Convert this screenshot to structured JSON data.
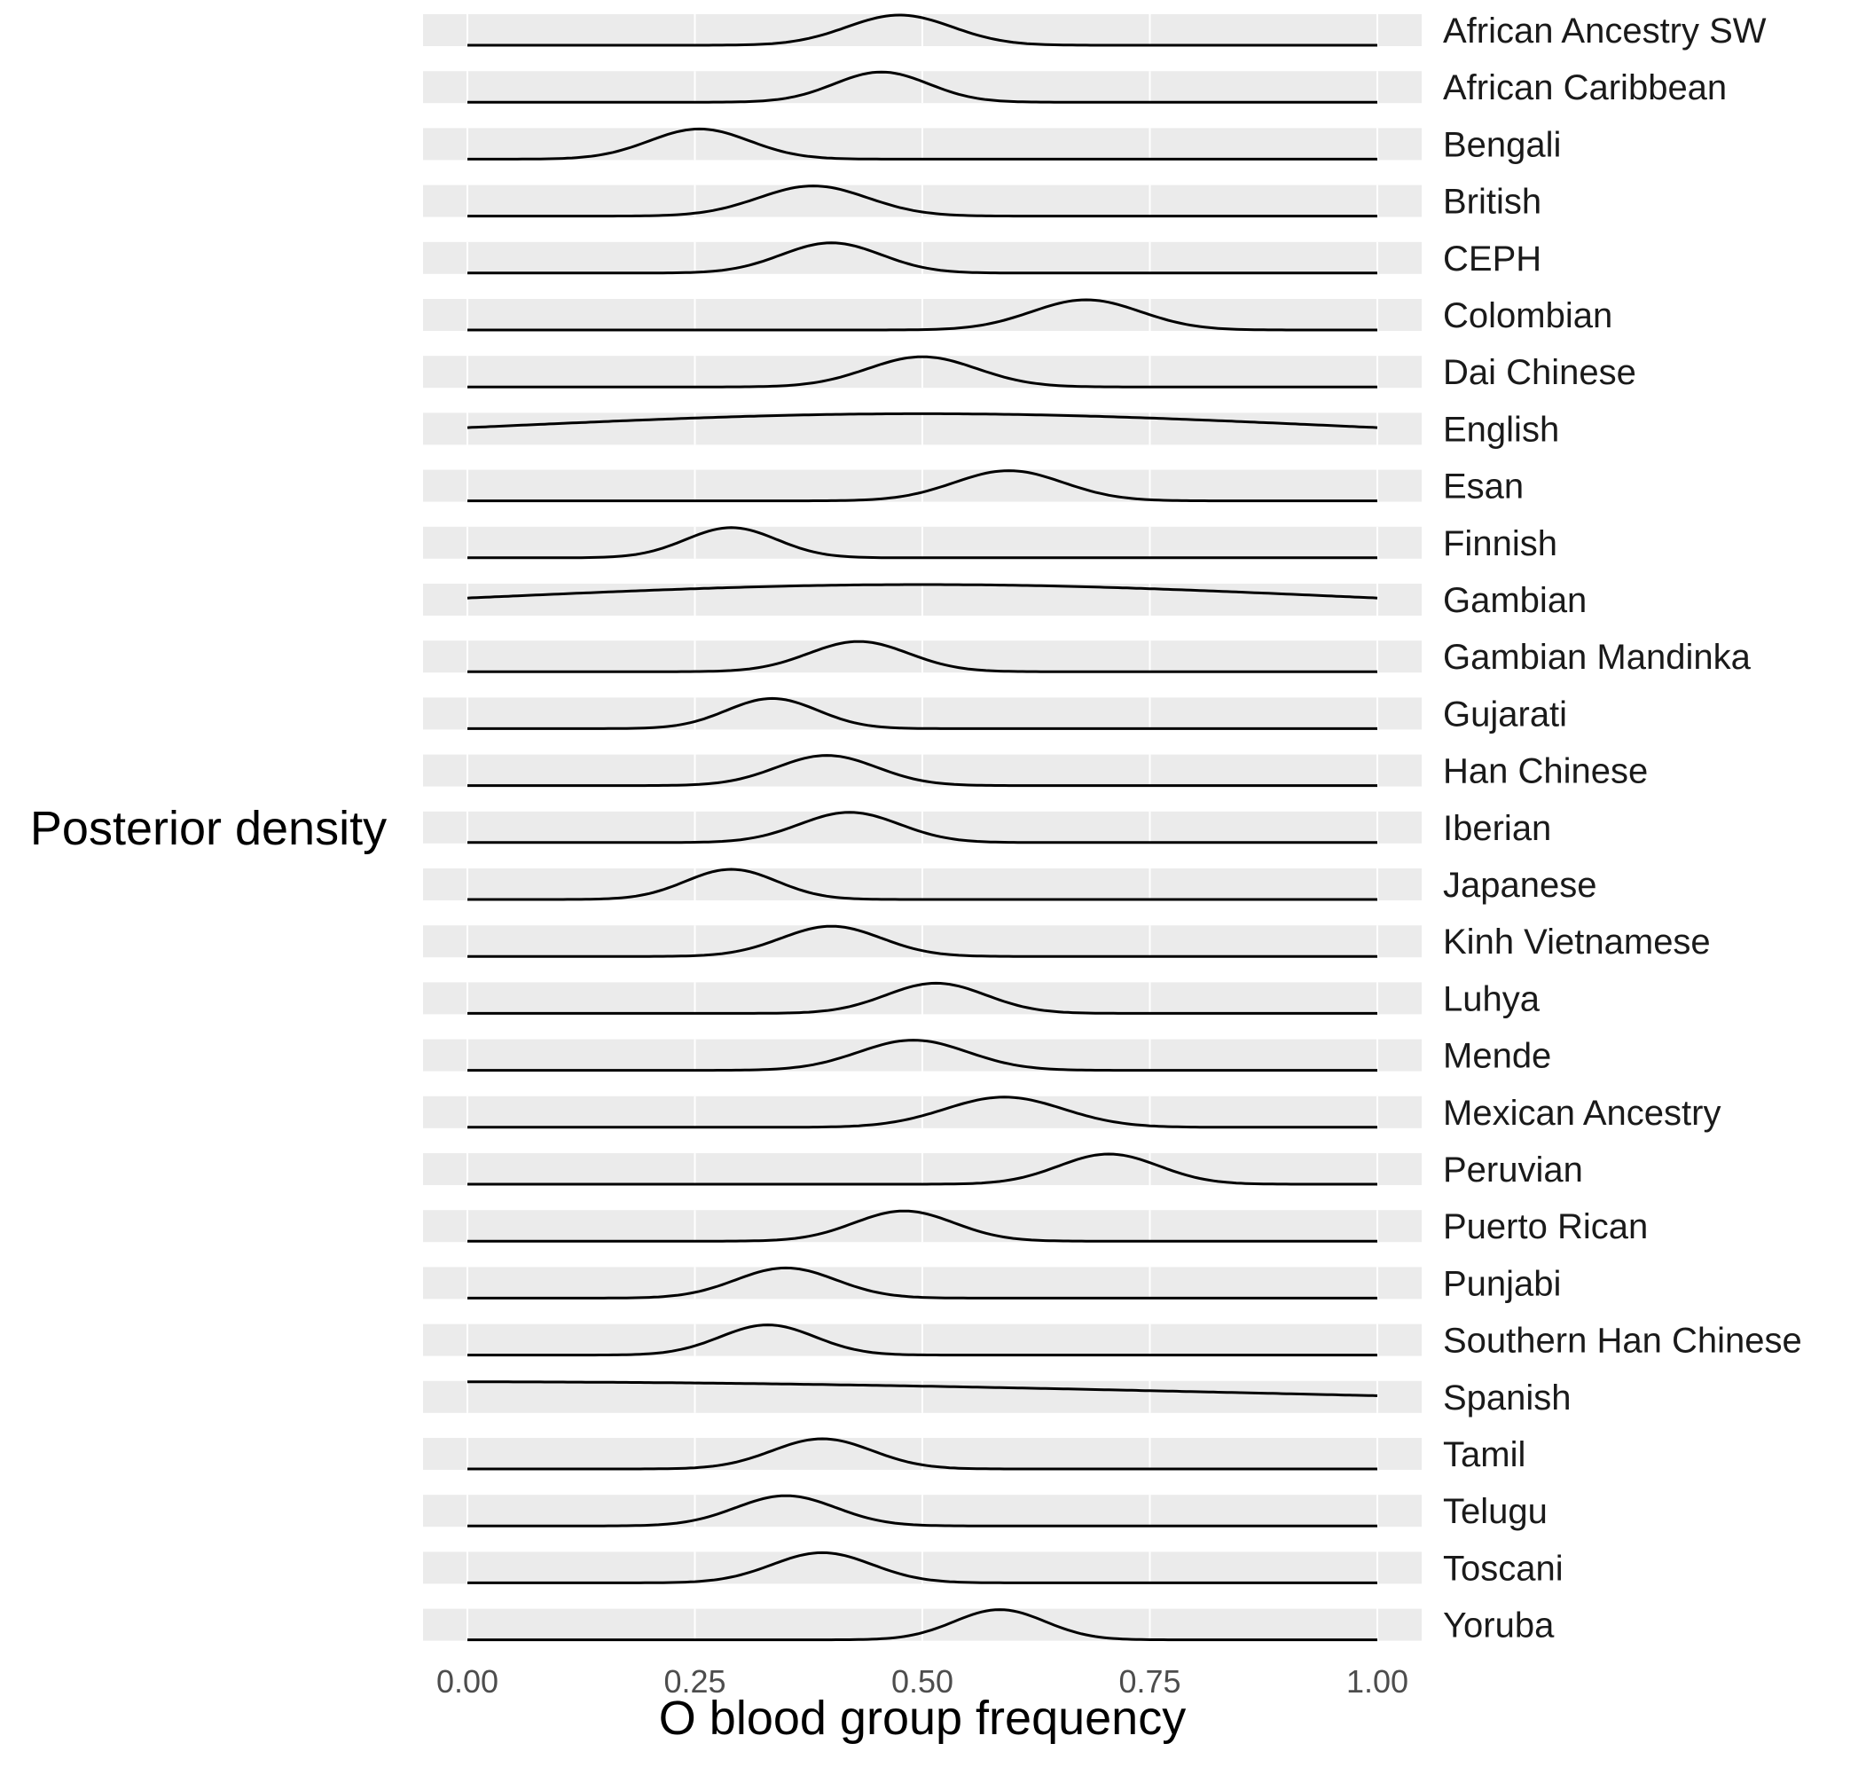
{
  "chart_data": {
    "type": "area",
    "facet": "ridgeline",
    "xlabel": "O blood group frequency",
    "ylabel": "Posterior density",
    "xlim": [
      0,
      1
    ],
    "x_ticks": [
      "0.00",
      "0.25",
      "0.50",
      "0.75",
      "1.00"
    ],
    "x_tick_values": [
      0,
      0.25,
      0.5,
      0.75,
      1.0
    ],
    "grid": true,
    "panel_background": "#ebebeb",
    "line_color": "#000000",
    "series": [
      {
        "name": "African Ancestry SW",
        "mode": 0.475,
        "sd": 0.058
      },
      {
        "name": "African Caribbean",
        "mode": 0.455,
        "sd": 0.052
      },
      {
        "name": "Bengali",
        "mode": 0.255,
        "sd": 0.055
      },
      {
        "name": "British",
        "mode": 0.38,
        "sd": 0.06
      },
      {
        "name": "CEPH",
        "mode": 0.4,
        "sd": 0.055
      },
      {
        "name": "Colombian",
        "mode": 0.68,
        "sd": 0.06
      },
      {
        "name": "Dai Chinese",
        "mode": 0.5,
        "sd": 0.06
      },
      {
        "name": "English",
        "mode": 0.5,
        "sd": 0.45
      },
      {
        "name": "Esan",
        "mode": 0.595,
        "sd": 0.06
      },
      {
        "name": "Finnish",
        "mode": 0.29,
        "sd": 0.05
      },
      {
        "name": "Gambian",
        "mode": 0.5,
        "sd": 0.46
      },
      {
        "name": "Gambian Mandinka",
        "mode": 0.43,
        "sd": 0.055
      },
      {
        "name": "Gujarati",
        "mode": 0.335,
        "sd": 0.05
      },
      {
        "name": "Han Chinese",
        "mode": 0.395,
        "sd": 0.055
      },
      {
        "name": "Iberian",
        "mode": 0.42,
        "sd": 0.055
      },
      {
        "name": "Japanese",
        "mode": 0.29,
        "sd": 0.05
      },
      {
        "name": "Kinh Vietnamese",
        "mode": 0.4,
        "sd": 0.055
      },
      {
        "name": "Luhya",
        "mode": 0.515,
        "sd": 0.055
      },
      {
        "name": "Mende",
        "mode": 0.49,
        "sd": 0.06
      },
      {
        "name": "Mexican Ancestry",
        "mode": 0.59,
        "sd": 0.065
      },
      {
        "name": "Peruvian",
        "mode": 0.705,
        "sd": 0.055
      },
      {
        "name": "Puerto Rican",
        "mode": 0.48,
        "sd": 0.055
      },
      {
        "name": "Punjabi",
        "mode": 0.35,
        "sd": 0.055
      },
      {
        "name": "Southern Han Chinese",
        "mode": 0.33,
        "sd": 0.052
      },
      {
        "name": "Spanish",
        "mode": 0.0,
        "sd": 0.9
      },
      {
        "name": "Tamil",
        "mode": 0.39,
        "sd": 0.055
      },
      {
        "name": "Telugu",
        "mode": 0.35,
        "sd": 0.055
      },
      {
        "name": "Toscani",
        "mode": 0.39,
        "sd": 0.055
      },
      {
        "name": "Yoruba",
        "mode": 0.585,
        "sd": 0.05
      }
    ]
  }
}
